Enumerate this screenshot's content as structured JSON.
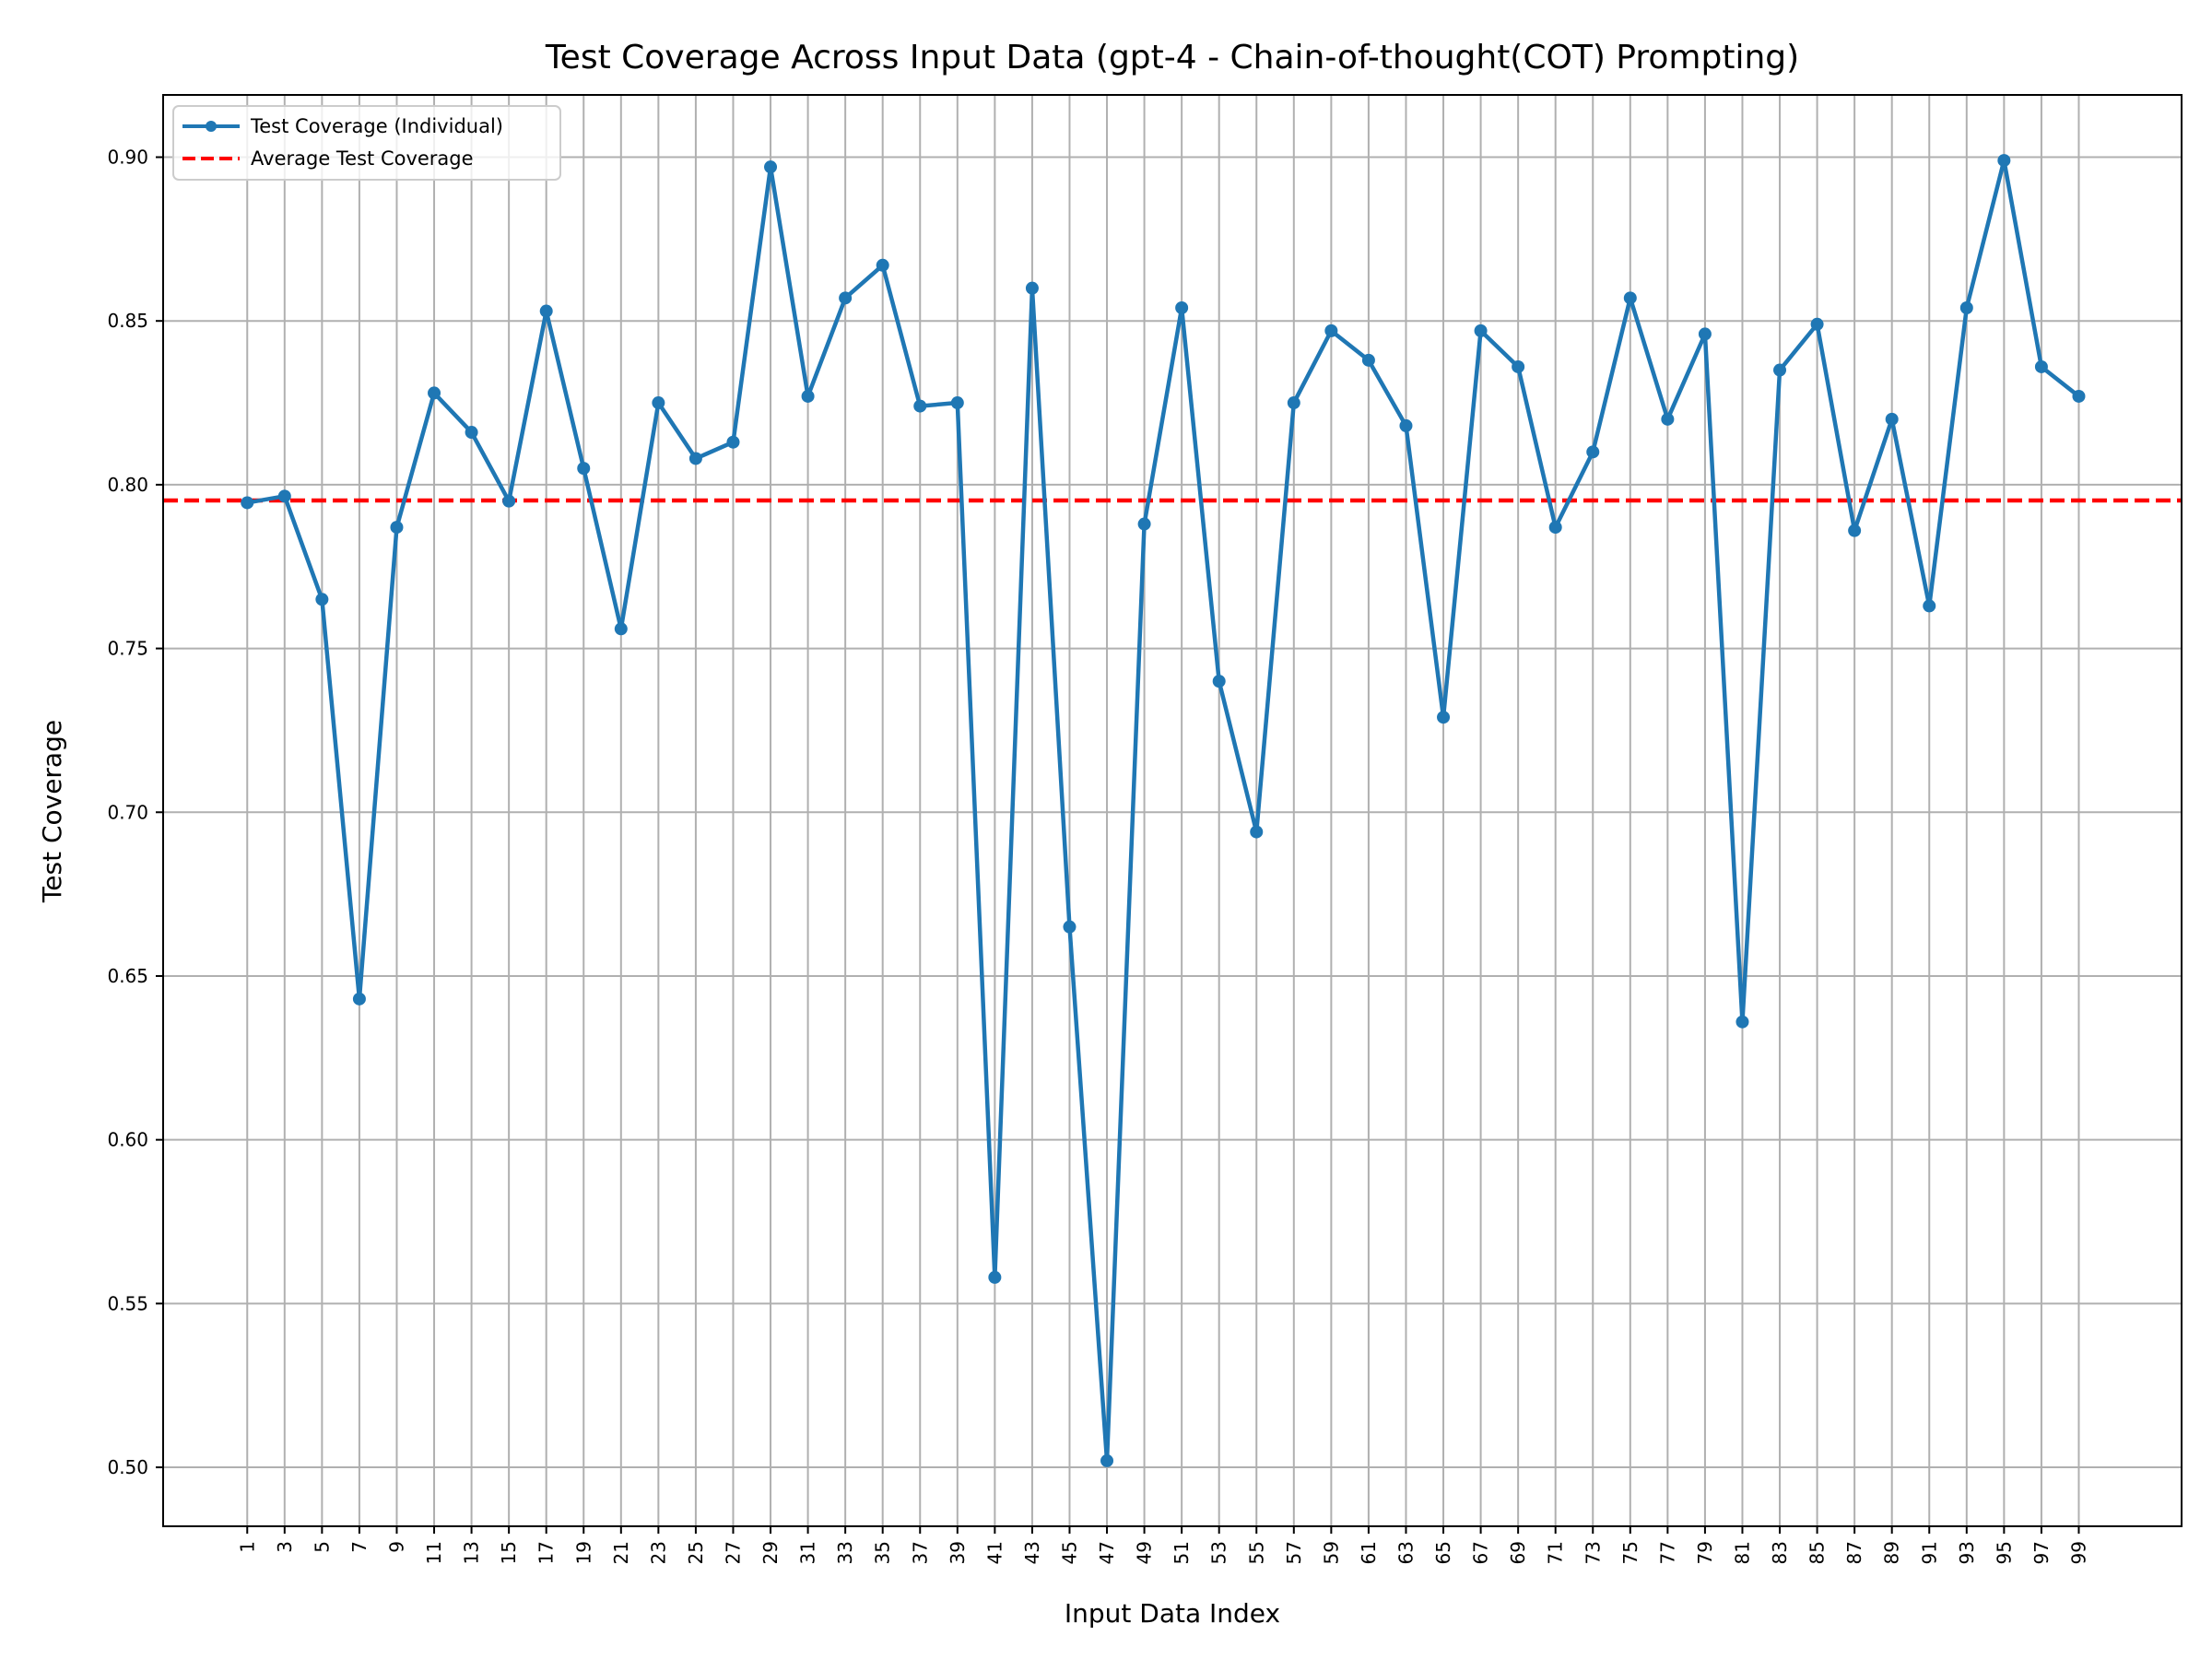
{
  "chart_data": {
    "type": "line",
    "title": "Test Coverage Across Input Data (gpt-4 - Chain-of-thought(COT) Prompting)",
    "xlabel": "Input Data Index",
    "ylabel": "Test Coverage",
    "xlim": [
      -3.5,
      104.5
    ],
    "ylim": [
      0.482,
      0.919
    ],
    "x_ticks": [
      1,
      3,
      5,
      7,
      9,
      11,
      13,
      15,
      17,
      19,
      21,
      23,
      25,
      27,
      29,
      31,
      33,
      35,
      37,
      39,
      41,
      43,
      45,
      47,
      49,
      51,
      53,
      55,
      57,
      59,
      61,
      63,
      65,
      67,
      69,
      71,
      73,
      75,
      77,
      79,
      81,
      83,
      85,
      87,
      89,
      91,
      93,
      95,
      97,
      99
    ],
    "y_ticks": [
      0.5,
      0.55,
      0.6,
      0.65,
      0.7,
      0.75,
      0.8,
      0.85,
      0.9
    ],
    "y_tick_labels": [
      "0.50",
      "0.55",
      "0.60",
      "0.65",
      "0.70",
      "0.75",
      "0.80",
      "0.85",
      "0.90"
    ],
    "grid": true,
    "legend_position": "top-left",
    "series": [
      {
        "name": "Test Coverage (Individual)",
        "color": "#1f77b4",
        "style": "solid-with-markers",
        "x": [
          1,
          3,
          5,
          7,
          9,
          11,
          13,
          15,
          17,
          19,
          21,
          23,
          25,
          27,
          29,
          31,
          33,
          35,
          37,
          39,
          41,
          43,
          45,
          47,
          49,
          51,
          53,
          55,
          57,
          59,
          61,
          63,
          65,
          67,
          69,
          71,
          73,
          75,
          77,
          79,
          81,
          83,
          85,
          87,
          89,
          91,
          93,
          95,
          97,
          99
        ],
        "values": [
          0.7945,
          0.7965,
          0.765,
          0.643,
          0.787,
          0.828,
          0.816,
          0.795,
          0.853,
          0.805,
          0.756,
          0.825,
          0.808,
          0.813,
          0.897,
          0.827,
          0.857,
          0.867,
          0.824,
          0.825,
          0.558,
          0.86,
          0.665,
          0.502,
          0.788,
          0.854,
          0.74,
          0.694,
          0.825,
          0.847,
          0.838,
          0.818,
          0.729,
          0.847,
          0.836,
          0.787,
          0.81,
          0.857,
          0.82,
          0.846,
          0.636,
          0.835,
          0.849,
          0.786,
          0.82,
          0.763,
          0.854,
          0.899,
          0.836,
          0.827
        ]
      },
      {
        "name": "Average Test Coverage",
        "color": "#ff0000",
        "style": "dashed",
        "value": 0.7952
      }
    ]
  }
}
